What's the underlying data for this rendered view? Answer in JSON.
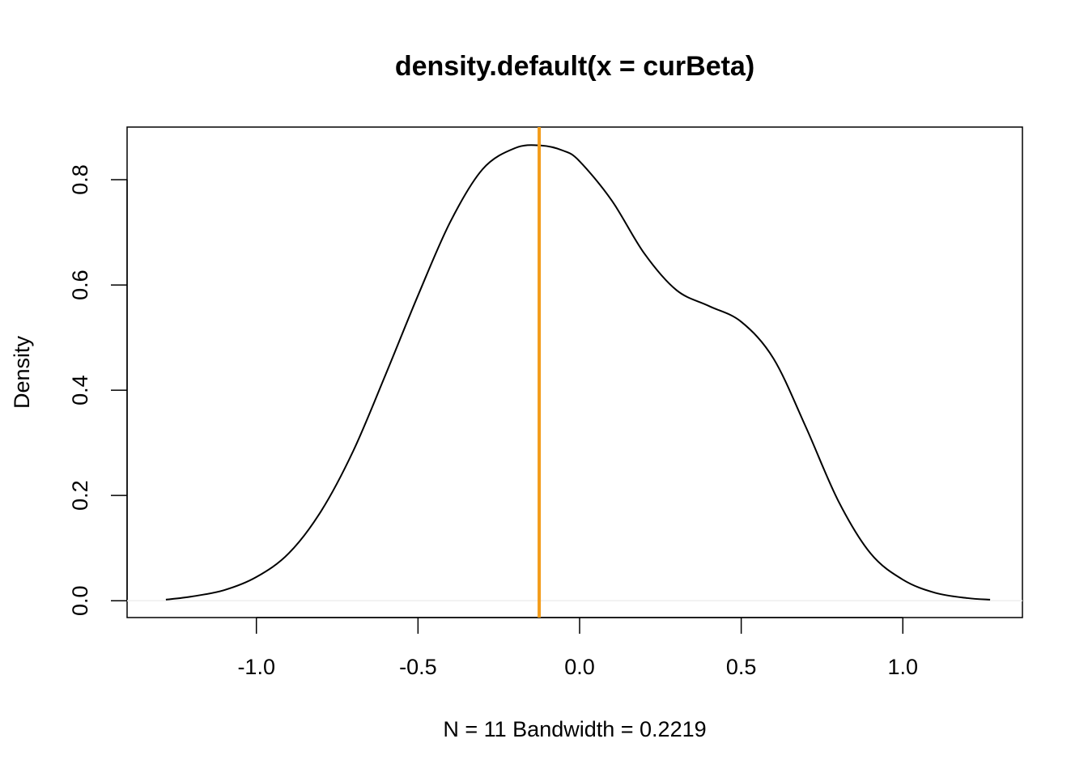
{
  "chart_data": {
    "type": "line",
    "title": "density.default(x = curBeta)",
    "xlabel": "N = 11   Bandwidth = 0.2219",
    "ylabel": "Density",
    "xlim": [
      -1.4,
      1.37
    ],
    "ylim": [
      -0.032,
      0.9
    ],
    "x_ticks": [
      -1.0,
      -0.5,
      0.0,
      0.5,
      1.0
    ],
    "x_tick_labels": [
      "-1.0",
      "-0.5",
      "0.0",
      "0.5",
      "1.0"
    ],
    "y_ticks": [
      0.0,
      0.2,
      0.4,
      0.6,
      0.8
    ],
    "y_tick_labels": [
      "0.0",
      "0.2",
      "0.4",
      "0.6",
      "0.8"
    ],
    "grid": false,
    "series": [
      {
        "color": "#000000",
        "x": [
          -1.28,
          -1.2,
          -1.1,
          -1.0,
          -0.9,
          -0.8,
          -0.7,
          -0.6,
          -0.5,
          -0.4,
          -0.3,
          -0.2,
          -0.12,
          -0.05,
          0.0,
          0.1,
          0.2,
          0.3,
          0.4,
          0.5,
          0.6,
          0.7,
          0.8,
          0.9,
          1.0,
          1.1,
          1.2,
          1.27
        ],
        "y": [
          0.002,
          0.008,
          0.02,
          0.045,
          0.09,
          0.17,
          0.285,
          0.43,
          0.58,
          0.72,
          0.82,
          0.86,
          0.865,
          0.855,
          0.835,
          0.76,
          0.66,
          0.59,
          0.56,
          0.53,
          0.46,
          0.33,
          0.19,
          0.09,
          0.04,
          0.015,
          0.005,
          0.002
        ]
      }
    ],
    "vline": {
      "x": -0.125,
      "color": "#f39c1a"
    },
    "baseline": {
      "y": 0.0,
      "color": "#eeeeee"
    }
  }
}
